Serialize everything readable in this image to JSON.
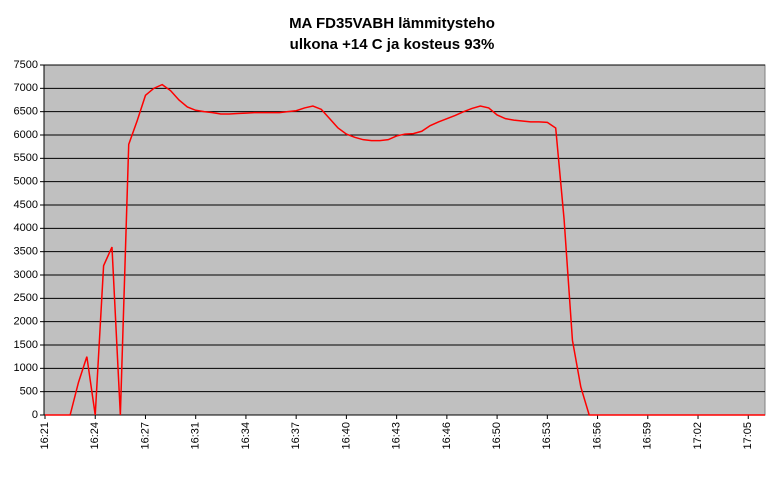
{
  "chart_data": {
    "type": "line",
    "title": "MA FD35VABH lämmitysteho",
    "subtitle": "ulkona +14 C ja kosteus 93%",
    "categories": [
      "16:21",
      null,
      null,
      null,
      null,
      null,
      "16:24",
      null,
      null,
      null,
      null,
      null,
      "16:27",
      null,
      null,
      null,
      null,
      null,
      "16:31",
      null,
      null,
      null,
      null,
      null,
      "16:34",
      null,
      null,
      null,
      null,
      null,
      "16:37",
      null,
      null,
      null,
      null,
      null,
      "16:40",
      null,
      null,
      null,
      null,
      null,
      "16:43",
      null,
      null,
      null,
      null,
      null,
      "16:46",
      null,
      null,
      null,
      null,
      null,
      "16:50",
      null,
      null,
      null,
      null,
      null,
      "16:53",
      null,
      null,
      null,
      null,
      null,
      "16:56",
      null,
      null,
      null,
      null,
      null,
      "16:59",
      null,
      null,
      null,
      null,
      null,
      "17:02",
      null,
      null,
      null,
      null,
      null,
      "17:05",
      null,
      null
    ],
    "series": [
      {
        "color": "#ff0000",
        "values": [
          0,
          0,
          0,
          0,
          700,
          1250,
          0,
          3200,
          3600,
          0,
          5800,
          6300,
          6850,
          7000,
          7080,
          6950,
          6750,
          6600,
          6530,
          6500,
          6480,
          6450,
          6450,
          6460,
          6470,
          6480,
          6480,
          6480,
          6480,
          6500,
          6520,
          6580,
          6620,
          6550,
          6350,
          6150,
          6020,
          5950,
          5900,
          5880,
          5880,
          5900,
          5980,
          6020,
          6030,
          6080,
          6200,
          6280,
          6350,
          6420,
          6500,
          6570,
          6620,
          6580,
          6430,
          6350,
          6320,
          6300,
          6280,
          6280,
          6270,
          6150,
          4200,
          1600,
          600,
          0,
          0,
          0,
          0,
          0,
          0,
          0,
          0,
          0,
          0,
          0,
          0,
          0,
          0,
          0,
          0,
          0,
          0,
          0,
          0,
          0,
          0
        ]
      }
    ],
    "ylim": [
      0,
      7500
    ],
    "yticks": [
      0,
      500,
      1000,
      1500,
      2000,
      2500,
      3000,
      3500,
      4000,
      4500,
      5000,
      5500,
      6000,
      6500,
      7000,
      7500
    ],
    "grid": true
  }
}
